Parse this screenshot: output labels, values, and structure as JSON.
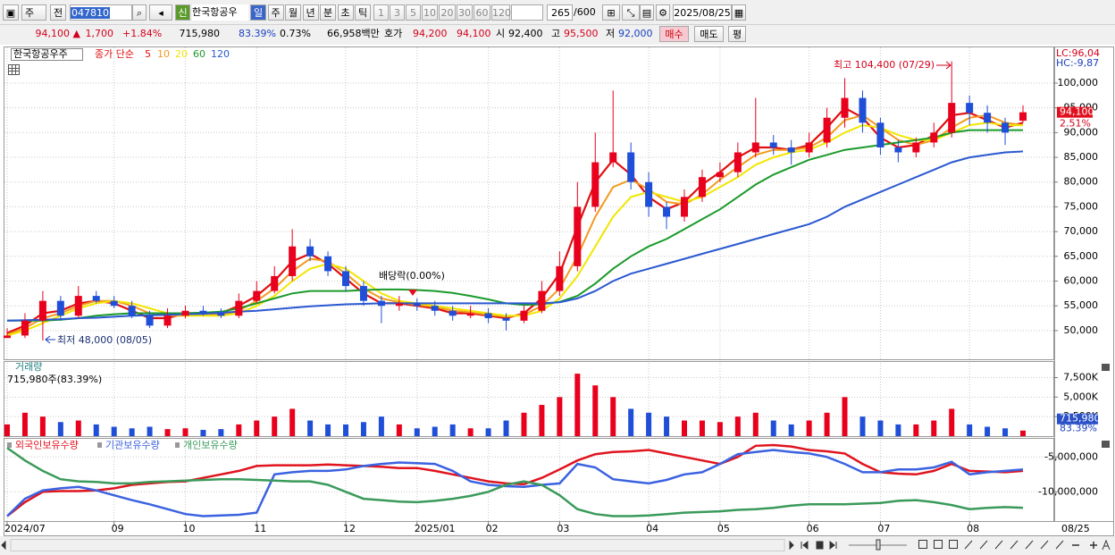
{
  "toolbar": {
    "period": "주",
    "prev": "전",
    "code": "047810",
    "new": "신",
    "name": "한국항공우",
    "units": [
      "일",
      "주",
      "월",
      "년",
      "분",
      "초",
      "틱"
    ],
    "intervals": [
      "1",
      "3",
      "5",
      "10",
      "20",
      "30",
      "60",
      "120"
    ],
    "count": "265",
    "max": "/600",
    "date": "2025/08/25"
  },
  "infobar": {
    "price": "94,100 ▲",
    "change": "1,700",
    "rate": "+1.84%",
    "volume": "715,980",
    "vol_rate": "83.39%",
    "turnover": "0.73%",
    "amount": "66,958백만",
    "quote_label": "호가",
    "ask": "94,200",
    "bid": "94,100",
    "open_label": "시",
    "open": "92,400",
    "high_label": "고",
    "high": "95,500",
    "low_label": "저",
    "low": "92,000",
    "buy": "매수",
    "sell": "매도",
    "avg": "평"
  },
  "chart_data": [
    {
      "type": "candlestick",
      "tag": "한국항공우주",
      "legend_prefix": "종가 단순",
      "lc": "LC:96,04",
      "hc": "HC:-9,87",
      "categories": [
        "2024/07",
        null,
        null,
        null,
        null,
        null,
        "09",
        null,
        null,
        null,
        "10",
        null,
        null,
        null,
        "11",
        null,
        null,
        null,
        null,
        "12",
        null,
        null,
        null,
        "2025/01",
        null,
        null,
        null,
        "02",
        null,
        null,
        null,
        "03",
        null,
        null,
        null,
        null,
        "04",
        null,
        null,
        null,
        "05",
        null,
        null,
        null,
        null,
        "06",
        null,
        null,
        null,
        "07",
        null,
        null,
        null,
        null,
        "08",
        null,
        null,
        "08/25"
      ],
      "open": [
        48500,
        49000,
        52000,
        56000,
        53000,
        57000,
        56000,
        55000,
        53000,
        51000,
        53000,
        54000,
        53500,
        53000,
        56000,
        58000,
        61000,
        67000,
        65000,
        62000,
        59000,
        56000,
        55000,
        55500,
        55000,
        54000,
        53000,
        53500,
        52500,
        52000,
        54000,
        58000,
        63000,
        75000,
        84000,
        86000,
        80000,
        75000,
        73000,
        77000,
        81000,
        82000,
        86000,
        88000,
        87000,
        86000,
        88000,
        93000,
        97000,
        92000,
        87000,
        86000,
        88000,
        90000,
        96000,
        94000,
        92000,
        92400
      ],
      "high": [
        50500,
        53500,
        58000,
        57000,
        59000,
        58000,
        57000,
        56000,
        54000,
        54500,
        55000,
        55000,
        54500,
        57500,
        60000,
        63000,
        70500,
        68500,
        66000,
        63000,
        60000,
        57000,
        57000,
        56500,
        56000,
        55000,
        55000,
        54500,
        53500,
        55000,
        60000,
        66000,
        80000,
        90000,
        98500,
        88000,
        82000,
        76000,
        78500,
        82500,
        84000,
        88000,
        97000,
        89500,
        88500,
        90000,
        95000,
        101000,
        98500,
        93000,
        88500,
        89000,
        92000,
        104400,
        97500,
        95500,
        93000,
        95500
      ],
      "low": [
        48500,
        48500,
        48000,
        52000,
        52500,
        55500,
        54500,
        52500,
        50500,
        50500,
        52500,
        53000,
        52500,
        52500,
        55500,
        57500,
        60000,
        64000,
        61000,
        58000,
        55000,
        51500,
        54000,
        54000,
        53000,
        52000,
        52500,
        51500,
        50000,
        51500,
        53500,
        57000,
        62000,
        74000,
        83000,
        78500,
        73000,
        70500,
        72000,
        76000,
        80000,
        81000,
        85000,
        85500,
        83500,
        85000,
        87000,
        91000,
        90000,
        85500,
        84000,
        85000,
        87000,
        89000,
        91500,
        90000,
        87500,
        92000
      ],
      "close": [
        49000,
        52000,
        56000,
        53000,
        57000,
        56000,
        55000,
        53000,
        51000,
        53000,
        54000,
        53500,
        53000,
        56000,
        58000,
        61000,
        67000,
        65000,
        62000,
        59000,
        56000,
        55000,
        55500,
        55000,
        54000,
        53000,
        53500,
        52500,
        52000,
        54000,
        58000,
        63000,
        75000,
        84000,
        86000,
        80000,
        75000,
        73000,
        77000,
        81000,
        82000,
        86000,
        88000,
        87000,
        86000,
        88000,
        93000,
        97000,
        92000,
        87000,
        86000,
        88000,
        90000,
        96000,
        94000,
        92000,
        90000,
        94100
      ],
      "up_color": "#e8001c",
      "down_color": "#1f4ed8",
      "series": [
        {
          "name": "5",
          "color": "#e01010",
          "values": [
            49500,
            51000,
            53500,
            54000,
            55500,
            56000,
            55500,
            54000,
            52500,
            52500,
            53500,
            53500,
            53500,
            55000,
            57000,
            60000,
            64000,
            65500,
            63500,
            60500,
            57500,
            55500,
            55500,
            55000,
            54500,
            53500,
            53500,
            53000,
            52500,
            53500,
            56500,
            61500,
            71000,
            80000,
            84500,
            81500,
            77000,
            74500,
            76000,
            79500,
            82000,
            85000,
            87000,
            87000,
            86500,
            87500,
            91000,
            95000,
            93000,
            89000,
            87000,
            87500,
            89500,
            93500,
            94000,
            92500,
            91000,
            92000
          ]
        },
        {
          "name": "10",
          "color": "#f39a1e",
          "values": [
            49200,
            50500,
            52500,
            53500,
            55000,
            56000,
            56000,
            55000,
            53500,
            53000,
            53000,
            53200,
            53200,
            54000,
            56000,
            58500,
            62000,
            64500,
            64000,
            61500,
            58500,
            56500,
            55700,
            55200,
            54800,
            54000,
            53700,
            53200,
            52800,
            53200,
            55000,
            58500,
            65000,
            73000,
            79000,
            80500,
            78500,
            76000,
            75500,
            77500,
            80500,
            83000,
            85500,
            86500,
            86500,
            87000,
            89000,
            92500,
            93500,
            91000,
            88500,
            87500,
            88500,
            91000,
            93000,
            93500,
            92000,
            91500
          ]
        },
        {
          "name": "20",
          "color": "#f2e600",
          "values": [
            49000,
            50000,
            51500,
            53000,
            54500,
            55500,
            56000,
            55500,
            54500,
            53500,
            53000,
            53000,
            53000,
            53500,
            55000,
            57000,
            60000,
            62500,
            63500,
            62500,
            60000,
            57500,
            56000,
            55500,
            55000,
            54500,
            54000,
            53500,
            53000,
            53000,
            54000,
            56500,
            61000,
            67000,
            73000,
            77000,
            78000,
            77000,
            76000,
            77000,
            79000,
            81000,
            83500,
            85000,
            86000,
            86500,
            88000,
            90000,
            91500,
            91000,
            89500,
            88500,
            88500,
            90000,
            91500,
            92000,
            91500,
            91500
          ]
        },
        {
          "name": "60",
          "color": "#1a9a2a",
          "values": [
            52000,
            52000,
            52000,
            52200,
            52500,
            53000,
            53300,
            53500,
            53500,
            53500,
            53500,
            53600,
            53800,
            54500,
            55500,
            56500,
            57500,
            58000,
            58000,
            58000,
            58200,
            58300,
            58300,
            58200,
            58000,
            57600,
            57000,
            56300,
            55500,
            55200,
            55300,
            55800,
            57000,
            59500,
            62500,
            65000,
            67000,
            68500,
            70500,
            72500,
            74500,
            77000,
            79500,
            81500,
            83000,
            84500,
            85500,
            86500,
            87000,
            87500,
            88000,
            88500,
            89000,
            90000,
            90500,
            90500,
            90500,
            90500
          ]
        },
        {
          "name": "120",
          "color": "#2a58d0",
          "values": [
            52000,
            52100,
            52200,
            52300,
            52500,
            52600,
            52800,
            53000,
            53100,
            53200,
            53300,
            53400,
            53600,
            53800,
            54000,
            54300,
            54600,
            54900,
            55100,
            55300,
            55400,
            55500,
            55500,
            55500,
            55500,
            55500,
            55500,
            55500,
            55500,
            55500,
            55500,
            55700,
            56500,
            58000,
            60000,
            61500,
            62500,
            63500,
            64500,
            65500,
            66500,
            67500,
            68500,
            69500,
            70500,
            71500,
            73000,
            75000,
            76500,
            78000,
            79500,
            81000,
            82500,
            84000,
            85000,
            85500,
            86000,
            86200
          ]
        }
      ],
      "ylim": [
        44200,
        107400
      ],
      "yticks": [
        {
          "value": 50000,
          "label": "50,000"
        },
        {
          "value": 55000,
          "label": "55,000"
        },
        {
          "value": 60000,
          "label": "60,000"
        },
        {
          "value": 65000,
          "label": "65,000"
        },
        {
          "value": 70000,
          "label": "70,000"
        },
        {
          "value": 75000,
          "label": "75,000"
        },
        {
          "value": 80000,
          "label": "80,000"
        },
        {
          "value": 85000,
          "label": "85,000"
        },
        {
          "value": 90000,
          "label": "90,000"
        },
        {
          "value": 95000,
          "label": "95,000"
        },
        {
          "value": 100000,
          "label": "100,000"
        }
      ],
      "last_label": {
        "value": 94100,
        "label": "94,100"
      },
      "last_sub": "2.51%",
      "annotations": {
        "high": "최고 104,400 (07/29)",
        "low": "최저 48,000 (08/05)",
        "dividend": "배당락(0.00%)"
      },
      "grid": true
    },
    {
      "type": "bar",
      "title": "거래량",
      "subtitle": "715,980주(83.39%)",
      "values": [
        1500000,
        3000000,
        2500000,
        1800000,
        2000000,
        1500000,
        1200000,
        1000000,
        1200000,
        900000,
        1000000,
        800000,
        900000,
        1500000,
        2000000,
        2500000,
        3500000,
        2000000,
        1500000,
        1500000,
        1800000,
        2500000,
        1500000,
        1000000,
        1200000,
        1500000,
        1000000,
        1000000,
        2000000,
        3000000,
        4000000,
        5000000,
        8000000,
        6500000,
        5000000,
        3500000,
        3000000,
        2500000,
        2000000,
        2000000,
        1800000,
        2500000,
        3000000,
        2000000,
        1500000,
        2000000,
        3000000,
        5000000,
        2500000,
        2000000,
        1500000,
        1500000,
        2000000,
        3500000,
        1500000,
        1200000,
        1000000,
        715980
      ],
      "ylim": [
        0,
        9500000
      ],
      "yticks": [
        {
          "value": 2500000,
          "label": "2,500K"
        },
        {
          "value": 5000000,
          "label": "5,000K"
        },
        {
          "value": 7500000,
          "label": "7,500K"
        }
      ],
      "last_label": {
        "value": 715980,
        "label": "715,980"
      },
      "last_sub": "83.39%",
      "grid": true
    },
    {
      "type": "line",
      "series": [
        {
          "name": "외국인보유수량",
          "color": "#e0141e",
          "values": [
            -13500000,
            -11500000,
            -10000000,
            -9900000,
            -9900000,
            -9800000,
            -9500000,
            -9000000,
            -8800000,
            -8600000,
            -8500000,
            -8000000,
            -7500000,
            -7000000,
            -6300000,
            -6200000,
            -6200000,
            -6200000,
            -6100000,
            -6200000,
            -6300000,
            -6400000,
            -6600000,
            -6600000,
            -7000000,
            -7500000,
            -8000000,
            -8500000,
            -8800000,
            -8900000,
            -8000000,
            -6800000,
            -5500000,
            -4600000,
            -4300000,
            -4200000,
            -4000000,
            -4500000,
            -5000000,
            -5500000,
            -6000000,
            -5000000,
            -3400000,
            -3300000,
            -3500000,
            -4000000,
            -4200000,
            -4500000,
            -6000000,
            -7200000,
            -7400000,
            -7500000,
            -7000000,
            -6000000,
            -7000000,
            -7100000,
            -7200000,
            -7000000
          ]
        },
        {
          "name": "기관보유수량",
          "color": "#3b62e0",
          "values": [
            -13500000,
            -11000000,
            -9800000,
            -9500000,
            -9300000,
            -9800000,
            -10500000,
            -11200000,
            -11800000,
            -12500000,
            -13200000,
            -13500000,
            -13400000,
            -13300000,
            -13000000,
            -7500000,
            -7200000,
            -7000000,
            -7000000,
            -6800000,
            -6300000,
            -6000000,
            -5800000,
            -5900000,
            -6000000,
            -7000000,
            -8500000,
            -9000000,
            -9200000,
            -9300000,
            -9000000,
            -8800000,
            -6000000,
            -6500000,
            -8200000,
            -8500000,
            -8800000,
            -8300000,
            -7500000,
            -7200000,
            -6000000,
            -4600000,
            -4300000,
            -4000000,
            -4300000,
            -4500000,
            -5000000,
            -6000000,
            -7200000,
            -7200000,
            -6800000,
            -6800000,
            -6500000,
            -5700000,
            -7500000,
            -7200000,
            -7000000,
            -6800000
          ]
        },
        {
          "name": "개인보유수량",
          "color": "#3a9a5a",
          "values": [
            -3700000,
            -5500000,
            -7000000,
            -8200000,
            -8500000,
            -8600000,
            -8800000,
            -8800000,
            -8600000,
            -8500000,
            -8400000,
            -8300000,
            -8200000,
            -8200000,
            -8300000,
            -8400000,
            -8500000,
            -8500000,
            -9000000,
            -10000000,
            -11000000,
            -11200000,
            -11400000,
            -11500000,
            -11300000,
            -11000000,
            -10600000,
            -10000000,
            -9000000,
            -8500000,
            -9000000,
            -10500000,
            -12500000,
            -13200000,
            -13500000,
            -13500000,
            -13400000,
            -13200000,
            -13000000,
            -12900000,
            -12800000,
            -12600000,
            -12500000,
            -12300000,
            -12000000,
            -11800000,
            -11800000,
            -11800000,
            -11700000,
            -11600000,
            -11300000,
            -11200000,
            -11500000,
            -11900000,
            -12500000,
            -12300000,
            -12200000,
            -12300000
          ]
        }
      ],
      "ylim": [
        -14200000,
        -2400000
      ],
      "yticks": [
        {
          "value": -5000000,
          "label": "-5,000,000"
        },
        {
          "value": -10000000,
          "label": "-10,000,000"
        }
      ],
      "grid": true
    }
  ]
}
